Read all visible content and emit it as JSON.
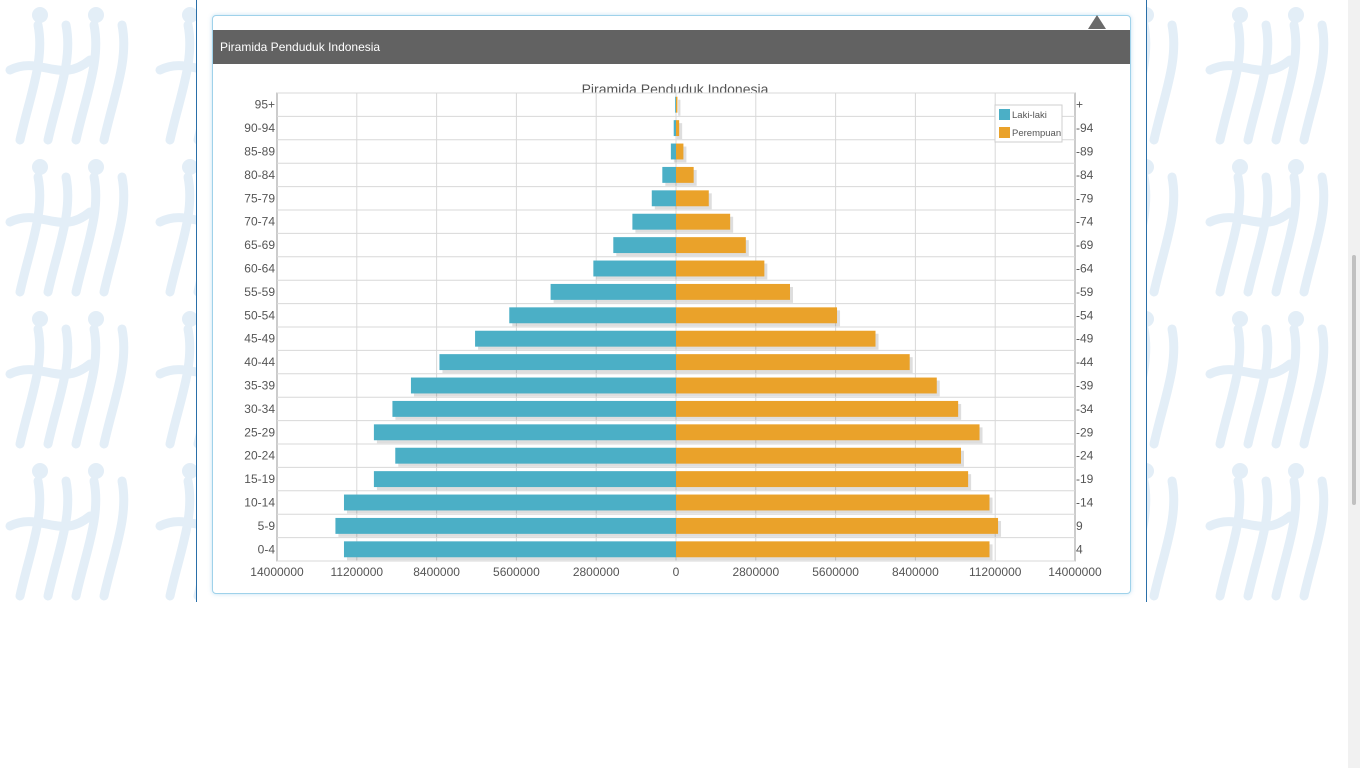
{
  "panel": {
    "title": "Piramida Penduduk Indonesia"
  },
  "colors": {
    "male": "#4bafc6",
    "female": "#eaa22a",
    "header": "#626262",
    "grid": "#d8d8d8"
  },
  "chart_data": {
    "type": "bar",
    "orientation": "horizontal-pyramid",
    "title": "Piramida Penduduk Indonesia",
    "categories": [
      "0-4",
      "5-9",
      "10-14",
      "15-19",
      "20-24",
      "25-29",
      "30-34",
      "35-39",
      "40-44",
      "45-49",
      "50-54",
      "55-59",
      "60-64",
      "65-69",
      "70-74",
      "75-79",
      "80-84",
      "85-89",
      "90-94",
      "95+"
    ],
    "right_tick_labels": [
      "4",
      "9",
      "-14",
      "-19",
      "-24",
      "-29",
      "-34",
      "-39",
      "-44",
      "-49",
      "-54",
      "-59",
      "-64",
      "-69",
      "-74",
      "-79",
      "-84",
      "-89",
      "-94",
      "+"
    ],
    "series": [
      {
        "name": "Laki-laki",
        "values": [
          11650000,
          11950000,
          11650000,
          10600000,
          9850000,
          10600000,
          9950000,
          9300000,
          8300000,
          7050000,
          5850000,
          4400000,
          2900000,
          2200000,
          1530000,
          850000,
          480000,
          180000,
          80000,
          30000
        ]
      },
      {
        "name": "Perempuan",
        "values": [
          11000000,
          11300000,
          11000000,
          10250000,
          10000000,
          10650000,
          9900000,
          9150000,
          8200000,
          7000000,
          5650000,
          4000000,
          3100000,
          2450000,
          1900000,
          1150000,
          620000,
          260000,
          110000,
          50000
        ]
      }
    ],
    "x_ticks": [
      "14000000",
      "11200000",
      "8400000",
      "5600000",
      "2800000",
      "0",
      "2800000",
      "5600000",
      "8400000",
      "11200000",
      "14000000"
    ],
    "xlim": [
      -14000000,
      14000000
    ],
    "grid": true,
    "legend": "top-right"
  }
}
